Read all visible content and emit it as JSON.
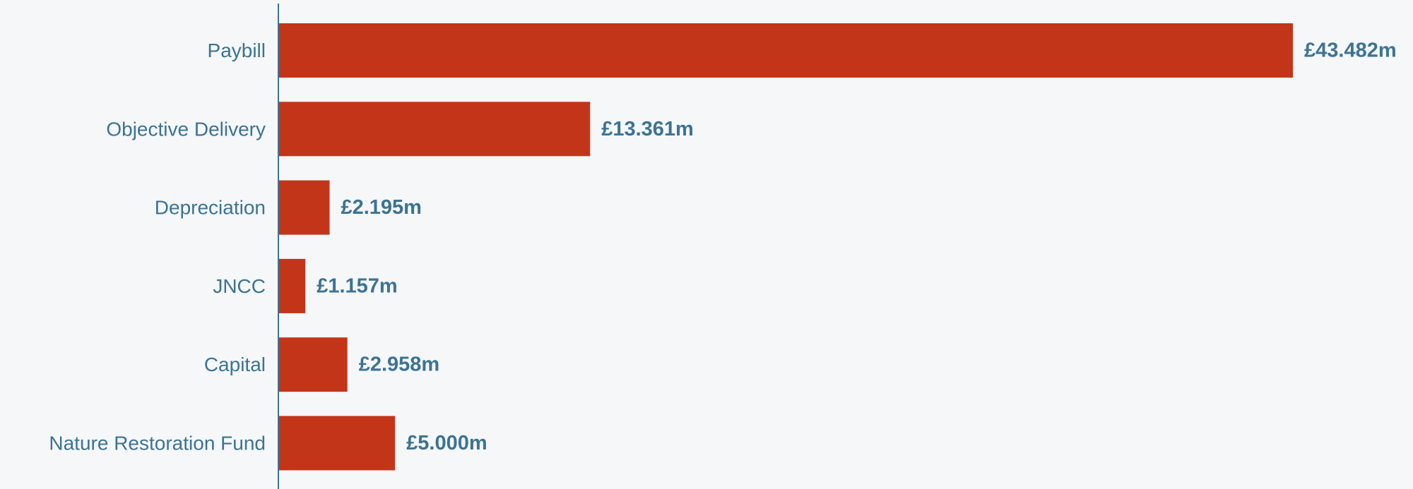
{
  "chart_data": {
    "type": "bar",
    "orientation": "horizontal",
    "title": "",
    "xlabel": "",
    "ylabel": "",
    "categories": [
      "Paybill",
      "Objective Delivery",
      "Depreciation",
      "JNCC",
      "Capital",
      "Nature Restoration Fund"
    ],
    "values": [
      43.482,
      13.361,
      2.195,
      1.157,
      2.958,
      5.0
    ],
    "value_labels": [
      "£43.482m",
      "£13.361m",
      "£2.195m",
      "£1.157m",
      "£2.958m",
      "£5.000m"
    ],
    "unit": "£m",
    "xlim": [
      0,
      43.482
    ],
    "grid": false,
    "legend": "none",
    "colors": {
      "bar": "#c33519",
      "text": "#3c7394",
      "axis": "#3c7394",
      "background": "#f5f7f9"
    }
  }
}
